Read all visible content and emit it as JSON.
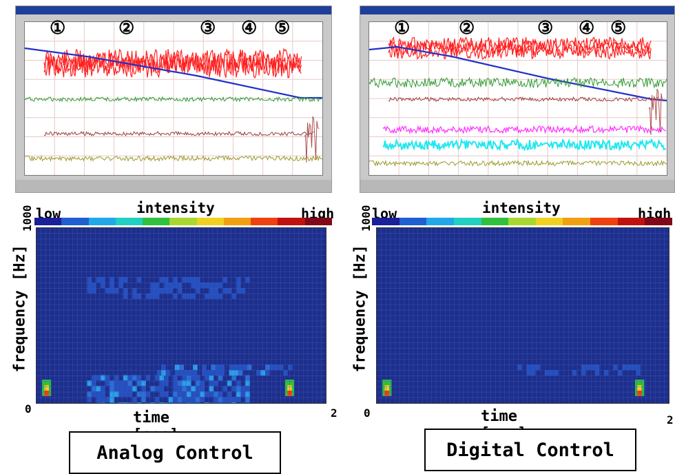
{
  "panels": [
    {
      "key": "analog",
      "caption": "Analog Control",
      "phase_markers": [
        "①",
        "②",
        "③",
        "④",
        "⑤"
      ],
      "waveform_traces": [
        {
          "name": "red",
          "color": "#ff2020"
        },
        {
          "name": "blue",
          "color": "#2030c8"
        },
        {
          "name": "green",
          "color": "#2d9a2d"
        },
        {
          "name": "brown",
          "color": "#9a3a3a"
        },
        {
          "name": "olive",
          "color": "#9a9a2a"
        }
      ]
    },
    {
      "key": "digital",
      "caption": "Digital Control",
      "phase_markers": [
        "①",
        "②",
        "③",
        "④",
        "⑤"
      ],
      "waveform_traces": [
        {
          "name": "red",
          "color": "#ff2020"
        },
        {
          "name": "blue",
          "color": "#2030c8"
        },
        {
          "name": "green",
          "color": "#2d9a2d"
        },
        {
          "name": "brown",
          "color": "#9a3a3a"
        },
        {
          "name": "magenta",
          "color": "#ff30ff"
        },
        {
          "name": "cyan",
          "color": "#20e8f0"
        },
        {
          "name": "olive",
          "color": "#9a9a2a"
        }
      ]
    }
  ],
  "colorbar": {
    "title": "intensity",
    "low_label": "low",
    "high_label": "high",
    "colors": [
      "#1a1f9a",
      "#1f5fd0",
      "#21a8e8",
      "#20d0c0",
      "#30c040",
      "#a8d830",
      "#f0d020",
      "#f0a010",
      "#f04010",
      "#c01010",
      "#800818"
    ]
  },
  "chart_data": [
    {
      "type": "heatmap",
      "title": "Analog Control",
      "xlabel": "time [sec]",
      "ylabel": "frequency [Hz]",
      "xlim": [
        0,
        2
      ],
      "ylim": [
        0,
        1000
      ],
      "x_ticks": [
        "0",
        "2"
      ],
      "y_ticks": [
        "0",
        "1000"
      ],
      "grid": true,
      "value_scale": [
        "low",
        "high"
      ],
      "hotspots": [
        {
          "time": 0.07,
          "frequency": 40,
          "intensity": "high"
        },
        {
          "time": 1.75,
          "frequency": 40,
          "intensity": "high"
        }
      ],
      "bands": [
        {
          "time_range": [
            0.35,
            1.45
          ],
          "frequency_range": [
            0,
            160
          ],
          "intensity": "medium"
        },
        {
          "time_range": [
            0.8,
            1.75
          ],
          "frequency_range": [
            180,
            220
          ],
          "intensity": "medium"
        },
        {
          "time_range": [
            0.35,
            1.45
          ],
          "frequency_range": [
            600,
            720
          ],
          "intensity": "low-medium"
        }
      ]
    },
    {
      "type": "heatmap",
      "title": "Digital Control",
      "xlabel": "time [sec]",
      "ylabel": "frequency [Hz]",
      "xlim": [
        0,
        2
      ],
      "ylim": [
        0,
        1000
      ],
      "x_ticks": [
        "0",
        "2"
      ],
      "y_ticks": [
        "0",
        "1000"
      ],
      "grid": true,
      "value_scale": [
        "low",
        "high"
      ],
      "hotspots": [
        {
          "time": 0.07,
          "frequency": 40,
          "intensity": "high"
        },
        {
          "time": 1.8,
          "frequency": 40,
          "intensity": "high"
        }
      ],
      "bands": [
        {
          "time_range": [
            0.9,
            1.8
          ],
          "frequency_range": [
            180,
            220
          ],
          "intensity": "low"
        }
      ]
    }
  ]
}
